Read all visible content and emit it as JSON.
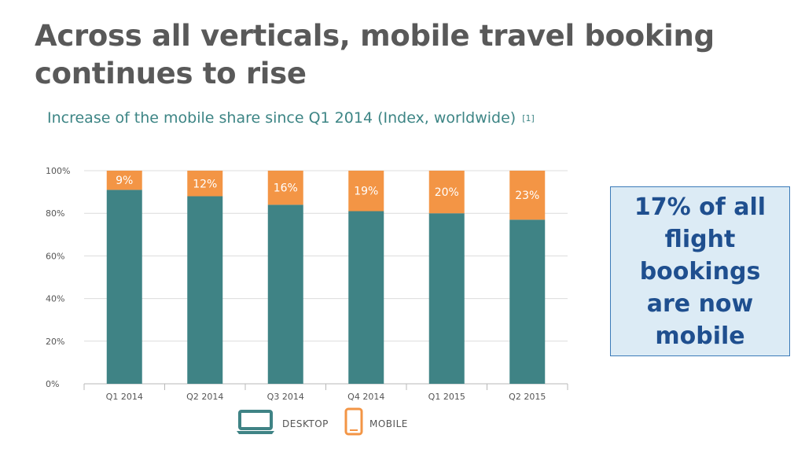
{
  "slide": {
    "title": "Across all verticals, mobile travel booking continues to rise",
    "callout": "17% of all flight bookings are now mobile"
  },
  "chart_data": {
    "type": "bar",
    "stacked": true,
    "title": "Increase of the mobile share since Q1 2014 (Index, worldwide)",
    "title_ref": "[1]",
    "categories": [
      "Q1 2014",
      "Q2 2014",
      "Q3 2014",
      "Q4 2014",
      "Q1 2015",
      "Q2 2015"
    ],
    "series": [
      {
        "name": "DESKTOP",
        "values": [
          91,
          88,
          84,
          81,
          80,
          77
        ],
        "color": "#3f8385"
      },
      {
        "name": "MOBILE",
        "values": [
          9,
          12,
          16,
          19,
          20,
          23
        ],
        "color": "#f39545"
      }
    ],
    "data_labels": [
      "9%",
      "12%",
      "16%",
      "19%",
      "20%",
      "23%"
    ],
    "y_ticks": [
      "0%",
      "20%",
      "40%",
      "60%",
      "80%",
      "100%"
    ],
    "ylim": [
      0,
      100
    ],
    "grid": true,
    "legend": "bottom-center"
  }
}
